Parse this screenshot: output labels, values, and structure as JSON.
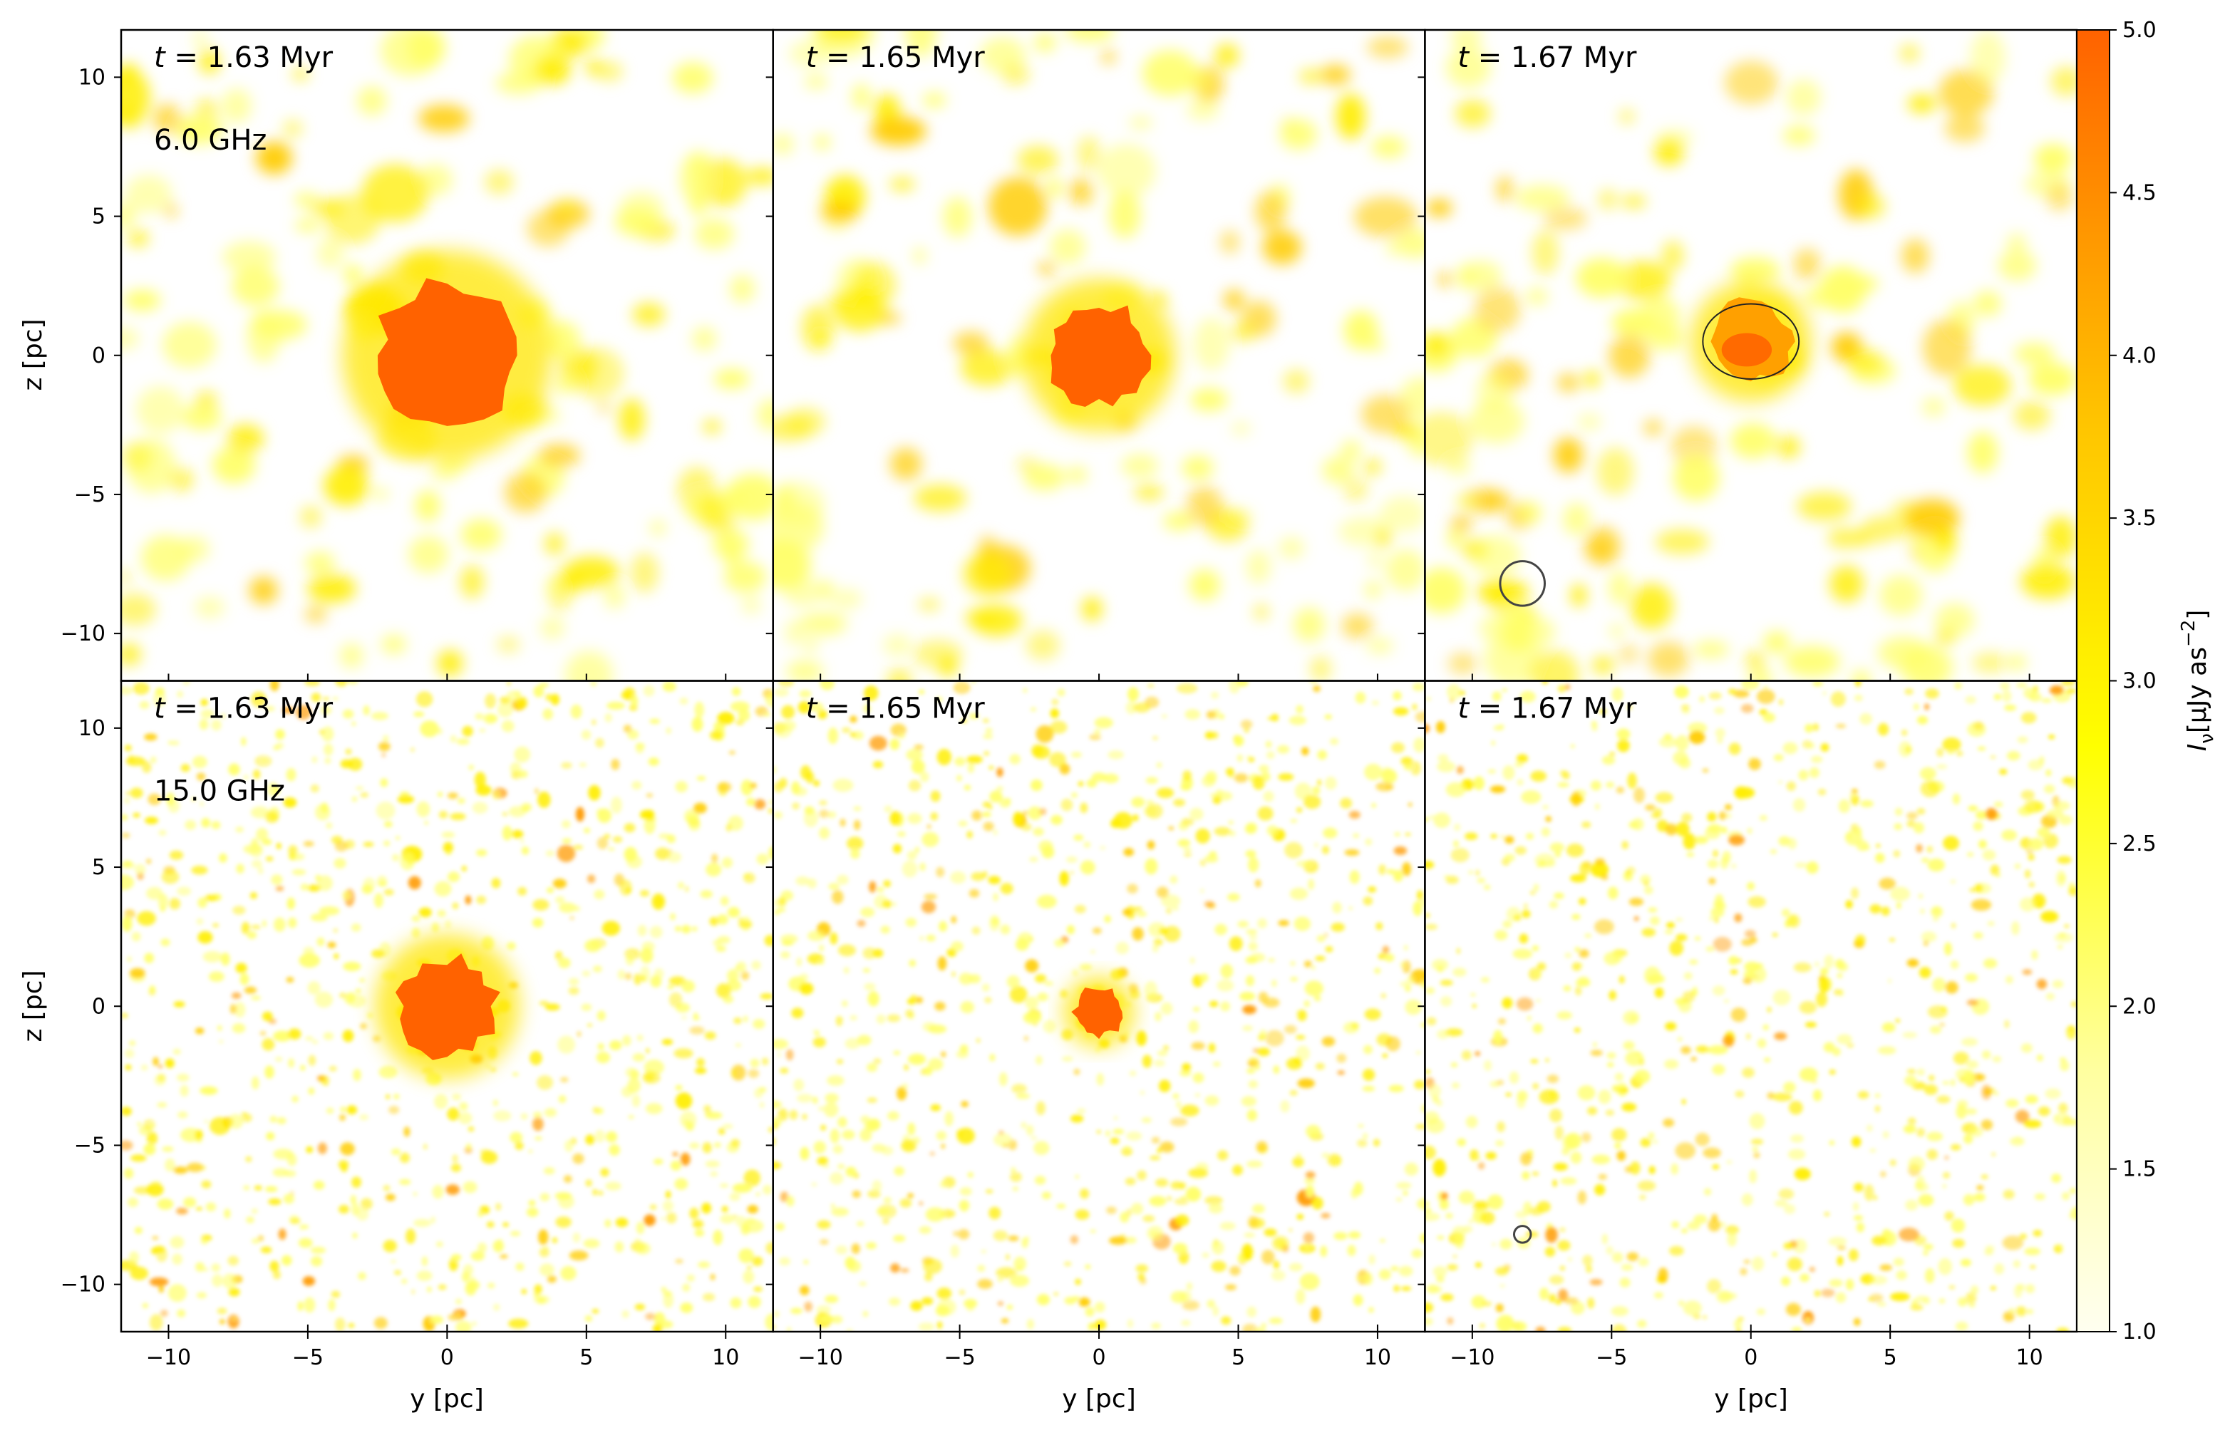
{
  "chart_data": {
    "type": "heatmap",
    "xlabel": "y [pc]",
    "ylabel": "z [pc]",
    "xlim": [
      -11.7,
      11.7
    ],
    "ylim": [
      -11.7,
      11.7
    ],
    "xticks": [
      -10,
      -5,
      0,
      5,
      10
    ],
    "yticks": [
      -10,
      -5,
      0,
      5,
      10
    ],
    "xtick_labels": [
      "−10",
      "−5",
      "0",
      "5",
      "10"
    ],
    "ytick_labels": [
      "−10",
      "−5",
      "0",
      "5",
      "10"
    ],
    "times": [
      {
        "italic": "t",
        "rest": " = 1.63 Myr"
      },
      {
        "italic": "t",
        "rest": " = 1.65 Myr"
      },
      {
        "italic": "t",
        "rest": " = 1.67 Myr"
      }
    ],
    "frequencies": [
      "6.0 GHz",
      "15.0 GHz"
    ],
    "colorbar": {
      "label_main": "I",
      "label_sub": "ν",
      "label_rest": "[μJy as",
      "label_sup": "−2",
      "label_close": "]",
      "min": 1.0,
      "max": 5.0,
      "ticks": [
        1.0,
        1.5,
        2.0,
        2.5,
        3.0,
        3.5,
        4.0,
        4.5,
        5.0
      ],
      "tick_labels": [
        "1.0",
        "1.5",
        "2.0",
        "2.5",
        "3.0",
        "3.5",
        "4.0",
        "4.5",
        "5.0"
      ],
      "colors": [
        "#fffff0",
        "#ffffa0",
        "#ffff00",
        "#ffd700",
        "#ffa500",
        "#ff6a00"
      ]
    },
    "panels": [
      {
        "row": 0,
        "col": 0,
        "blob_radius_pc": 2.6,
        "blob_center": [
          0.0,
          0.0
        ],
        "noise": "smooth",
        "beam_radius_pc": null
      },
      {
        "row": 0,
        "col": 1,
        "blob_radius_pc": 1.9,
        "blob_center": [
          0.0,
          0.0
        ],
        "noise": "smooth",
        "beam_radius_pc": null
      },
      {
        "row": 0,
        "col": 2,
        "blob_radius_pc": 1.5,
        "blob_center": [
          0.0,
          0.5
        ],
        "noise": "smooth",
        "beam_radius_pc": 0.8,
        "beam_center": [
          -8.2,
          -8.2
        ]
      },
      {
        "row": 1,
        "col": 0,
        "blob_radius_pc": 1.8,
        "blob_center": [
          0.0,
          0.0
        ],
        "noise": "fine",
        "beam_radius_pc": null
      },
      {
        "row": 1,
        "col": 1,
        "blob_radius_pc": 0.9,
        "blob_center": [
          0.0,
          -0.2
        ],
        "noise": "fine",
        "beam_radius_pc": null
      },
      {
        "row": 1,
        "col": 2,
        "blob_radius_pc": 0.0,
        "blob_center": [
          0.0,
          0.0
        ],
        "noise": "fine",
        "beam_radius_pc": 0.3,
        "beam_center": [
          -8.2,
          -8.2
        ]
      }
    ]
  }
}
